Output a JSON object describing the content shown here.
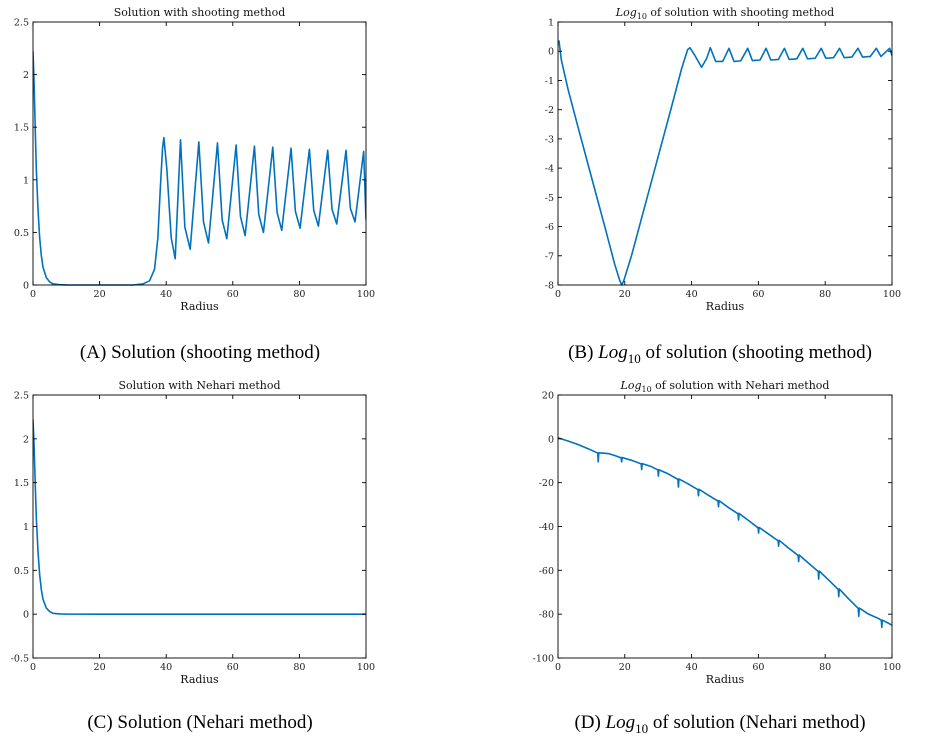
{
  "colors": {
    "series": "#0072BD",
    "axis": "#000000"
  },
  "chart_data": [
    {
      "id": "a",
      "type": "line",
      "title": "Solution with shooting method",
      "xlabel": "Radius",
      "ylabel": "",
      "xlim": [
        0,
        100
      ],
      "ylim": [
        0,
        2.5
      ],
      "xticks": [
        0,
        20,
        40,
        60,
        80,
        100
      ],
      "yticks": [
        0,
        0.5,
        1,
        1.5,
        2,
        2.5
      ],
      "grid": false,
      "caption": {
        "letter": "(A)",
        "text": "Solution (shooting method)"
      },
      "series": [
        {
          "x": [
            0,
            0.3,
            0.7,
            1,
            1.5,
            2,
            2.5,
            3,
            4,
            5,
            6,
            8,
            10,
            20,
            30,
            33,
            35,
            36.5,
            37.5,
            38.2,
            38.9,
            39.3,
            40.2,
            41.5,
            42.7,
            44.3,
            45.6,
            47.2,
            49.8,
            51.2,
            52.7,
            55.4,
            56.8,
            58.2,
            61,
            62.3,
            63.7,
            66.5,
            67.8,
            69.2,
            72,
            73.3,
            74.7,
            77.5,
            78.8,
            80.2,
            83,
            84.3,
            85.7,
            88.5,
            89.8,
            91.2,
            94,
            95.3,
            96.7,
            99.3,
            100
          ],
          "y": [
            2.22,
            1.95,
            1.45,
            1.1,
            0.72,
            0.45,
            0.28,
            0.17,
            0.07,
            0.03,
            0.01,
            0.003,
            0.001,
            0.0,
            0.0,
            0.01,
            0.04,
            0.15,
            0.45,
            0.9,
            1.3,
            1.4,
            1.1,
            0.45,
            0.25,
            1.38,
            0.55,
            0.34,
            1.36,
            0.6,
            0.4,
            1.35,
            0.62,
            0.44,
            1.33,
            0.65,
            0.47,
            1.32,
            0.67,
            0.5,
            1.31,
            0.69,
            0.52,
            1.3,
            0.7,
            0.54,
            1.29,
            0.71,
            0.56,
            1.28,
            0.72,
            0.58,
            1.28,
            0.73,
            0.6,
            1.27,
            0.62
          ]
        }
      ]
    },
    {
      "id": "b",
      "type": "line",
      "title_prefix": "Log",
      "title_sub": "10",
      "title": " of solution with shooting method",
      "xlabel": "Radius",
      "ylabel": "",
      "xlim": [
        0,
        100
      ],
      "ylim": [
        -8,
        1
      ],
      "xticks": [
        0,
        20,
        40,
        60,
        80,
        100
      ],
      "yticks": [
        -8,
        -7,
        -6,
        -5,
        -4,
        -3,
        -2,
        -1,
        0,
        1
      ],
      "grid": false,
      "caption": {
        "letter": "(B)",
        "text_prefix": "Log",
        "text_sub": "10",
        "text": " of solution (shooting method)"
      },
      "series": [
        {
          "x": [
            0,
            0.3,
            1,
            3,
            6,
            10,
            14,
            17,
            18.5,
            19.1,
            19.7,
            22,
            26,
            30,
            34,
            37,
            38.8,
            39.5,
            41,
            43,
            44.5,
            45.6,
            47.2,
            49.3,
            51.2,
            52.7,
            54.7,
            56.8,
            58.2,
            60.5,
            62.3,
            63.7,
            66,
            67.8,
            69.2,
            71.5,
            73.3,
            74.7,
            77,
            78.8,
            80.2,
            82.5,
            84.3,
            85.7,
            88,
            89.8,
            91.2,
            93.5,
            95.3,
            96.7,
            99.3,
            100
          ],
          "y": [
            0.3,
            0.35,
            -0.3,
            -1.3,
            -2.6,
            -4.3,
            -6.0,
            -7.3,
            -7.85,
            -8.0,
            -7.85,
            -7.0,
            -5.3,
            -3.6,
            -1.9,
            -0.6,
            0.05,
            0.12,
            -0.15,
            -0.55,
            -0.25,
            0.12,
            -0.35,
            -0.35,
            0.1,
            -0.35,
            -0.33,
            0.1,
            -0.32,
            -0.3,
            0.1,
            -0.3,
            -0.28,
            0.1,
            -0.28,
            -0.26,
            0.1,
            -0.26,
            -0.24,
            0.1,
            -0.24,
            -0.22,
            0.1,
            -0.22,
            -0.2,
            0.1,
            -0.2,
            -0.18,
            0.1,
            -0.18,
            0.1,
            -0.15
          ]
        }
      ]
    },
    {
      "id": "c",
      "type": "line",
      "title": "Solution with Nehari method",
      "xlabel": "Radius",
      "ylabel": "",
      "xlim": [
        0,
        100
      ],
      "ylim": [
        -0.5,
        2.5
      ],
      "xticks": [
        0,
        20,
        40,
        60,
        80,
        100
      ],
      "yticks": [
        -0.5,
        0,
        0.5,
        1,
        1.5,
        2,
        2.5
      ],
      "grid": false,
      "caption": {
        "letter": "(C)",
        "text": "Solution (Nehari method)"
      },
      "series": [
        {
          "x": [
            0,
            0.3,
            0.7,
            1,
            1.5,
            2,
            2.5,
            3,
            4,
            5,
            6,
            8,
            10,
            20,
            40,
            60,
            80,
            100
          ],
          "y": [
            2.22,
            1.95,
            1.45,
            1.1,
            0.72,
            0.45,
            0.28,
            0.17,
            0.07,
            0.03,
            0.01,
            0.003,
            0.001,
            0.0,
            0.0,
            0.0,
            0.0,
            0.0
          ]
        }
      ]
    },
    {
      "id": "d",
      "type": "line",
      "title_prefix": "Log",
      "title_sub": "10",
      "title": " of solution with Nehari method",
      "xlabel": "Radius",
      "ylabel": "",
      "xlim": [
        0,
        100
      ],
      "ylim": [
        -100,
        20
      ],
      "xticks": [
        0,
        20,
        40,
        60,
        80,
        100
      ],
      "yticks": [
        -100,
        -80,
        -60,
        -40,
        -20,
        0,
        20
      ],
      "grid": false,
      "caption": {
        "letter": "(D)",
        "text_prefix": "Log",
        "text_sub": "10",
        "text": " of solution (Nehari method)"
      },
      "series": [
        {
          "x": [
            0,
            3,
            6,
            9,
            11.9,
            12.05,
            12.2,
            15,
            17,
            18.9,
            19.05,
            19.2,
            22,
            24.9,
            25.05,
            25.2,
            28,
            29.9,
            30.05,
            30.2,
            33,
            35.9,
            36.05,
            36.2,
            39,
            41.9,
            42.05,
            42.2,
            45,
            47.9,
            48.05,
            48.2,
            51,
            53.9,
            54.05,
            54.2,
            57,
            59.9,
            60.05,
            60.2,
            63,
            65.9,
            66.05,
            66.2,
            69,
            71.9,
            72.05,
            72.2,
            75,
            77.9,
            78.05,
            78.2,
            81,
            83.9,
            84.05,
            84.2,
            87,
            89.9,
            90.05,
            90.2,
            93,
            96,
            96.8,
            96.95,
            97.1,
            100
          ],
          "y": [
            0.5,
            -1.0,
            -2.6,
            -4.5,
            -6.5,
            -10.5,
            -6.4,
            -6.7,
            -7.6,
            -8.7,
            -10.5,
            -8.5,
            -9.8,
            -11.4,
            -14.0,
            -11.3,
            -12.7,
            -14.2,
            -17.0,
            -14.1,
            -16.0,
            -18.5,
            -22.0,
            -18.3,
            -20.6,
            -23.2,
            -26.0,
            -23.0,
            -25.7,
            -28.4,
            -31.0,
            -28.2,
            -31.3,
            -34.2,
            -37.0,
            -34.0,
            -37.2,
            -40.6,
            -43.0,
            -40.4,
            -43.4,
            -46.5,
            -49.0,
            -46.3,
            -49.8,
            -53.2,
            -56.0,
            -53.0,
            -56.7,
            -60.5,
            -64.0,
            -60.3,
            -64.4,
            -68.7,
            -72.0,
            -68.5,
            -73.0,
            -77.4,
            -81.0,
            -77.2,
            -80.0,
            -82.0,
            -82.8,
            -86.0,
            -82.7,
            -85.0
          ]
        }
      ]
    }
  ]
}
